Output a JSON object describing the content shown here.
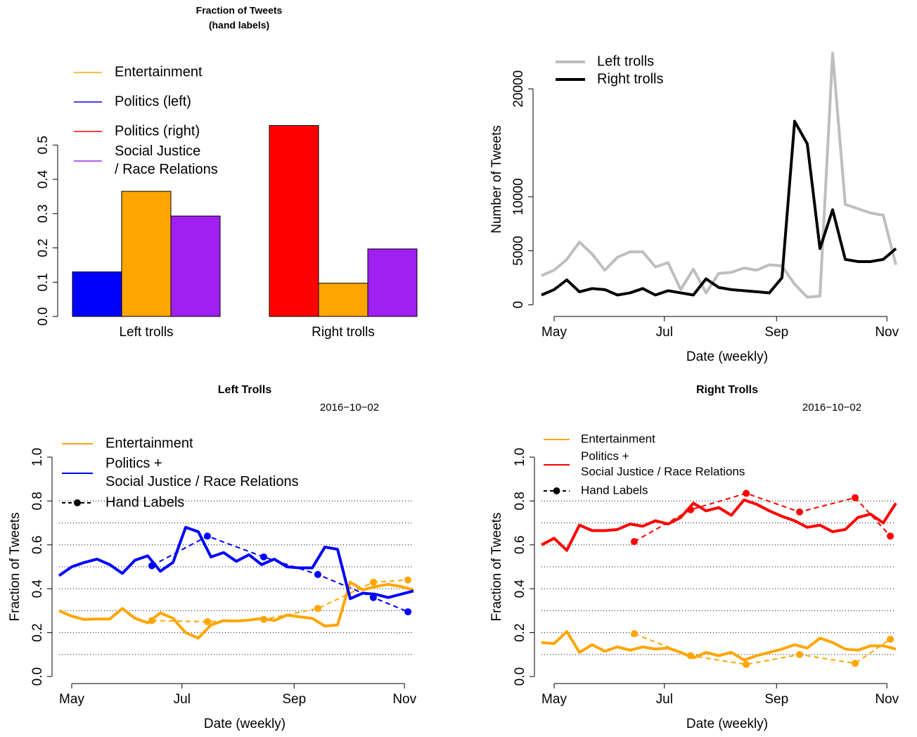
{
  "chart_data": [
    {
      "type": "bar",
      "title": "Fraction of Tweets\n(hand labels)",
      "legend": "topleft",
      "categories": [
        "Left trolls",
        "Right trolls"
      ],
      "series": [
        {
          "name": "Entertainment",
          "color": "#ffa500",
          "values": [
            0.365,
            0.097
          ]
        },
        {
          "name": "Politics (left)",
          "color": "#0000ff",
          "values": [
            0.13,
            null
          ]
        },
        {
          "name": "Politics (right)",
          "color": "#ff0000",
          "values": [
            null,
            0.557
          ]
        },
        {
          "name": "Social Justice\n/ Race Relations",
          "color": "#a020f0",
          "values": [
            0.293,
            0.197
          ]
        }
      ],
      "ylim": [
        0,
        0.56
      ],
      "yticks": [
        {
          "value": 0,
          "label": "0.0"
        },
        0.1,
        0.2,
        0.3,
        0.4,
        0.5
      ]
    },
    {
      "type": "line",
      "xlabel": "Date (weekly)",
      "ylabel": "Number of Tweets",
      "legend": "topleft",
      "x": [
        0,
        1,
        2,
        3,
        4,
        5,
        6,
        7,
        8,
        9,
        10,
        11,
        12,
        13,
        14,
        15,
        16,
        17,
        18,
        19,
        20,
        21,
        22,
        23,
        24,
        25,
        26,
        27,
        28
      ],
      "series": [
        {
          "name": "Left trolls",
          "color": "#bebebe",
          "values": [
            2700,
            3200,
            4200,
            5800,
            4700,
            3200,
            4400,
            4900,
            4900,
            3500,
            3900,
            1400,
            3300,
            1100,
            2900,
            3000,
            3400,
            3200,
            3700,
            3600,
            1900,
            700,
            800,
            23300,
            9300,
            8900,
            8500,
            8300,
            3700
          ]
        },
        {
          "name": "Right trolls",
          "color": "#000000",
          "values": [
            900,
            1400,
            2300,
            1200,
            1500,
            1400,
            900,
            1100,
            1500,
            900,
            1300,
            1100,
            900,
            2400,
            1600,
            1400,
            1300,
            1200,
            1100,
            2500,
            17000,
            14900,
            5200,
            8800,
            4200,
            4000,
            4000,
            4200,
            5200
          ]
        }
      ],
      "xlim": [
        0,
        28
      ],
      "xticks": [
        {
          "value": 1,
          "label": "May"
        },
        {
          "value": 9.71,
          "label": "Jul"
        },
        {
          "value": 18.57,
          "label": "Sep"
        },
        {
          "value": 27.29,
          "label": "Nov"
        }
      ],
      "ylim": [
        -500,
        24000
      ],
      "yticks": [
        0,
        5000,
        10000,
        20000
      ]
    },
    {
      "type": "line",
      "title": "Left Trolls",
      "subtitle": "2016−10−02",
      "xlabel": "Date (weekly)",
      "ylabel": "Fraction of Tweets",
      "legend": "topleft",
      "x": [
        0,
        1,
        2,
        3,
        4,
        5,
        6,
        7,
        8,
        9,
        10,
        11,
        12,
        13,
        14,
        15,
        16,
        17,
        18,
        19,
        20,
        21,
        22,
        23,
        24,
        25,
        26,
        27,
        28
      ],
      "series": [
        {
          "name": "Entertainment",
          "color": "#ffa500",
          "values": [
            0.3,
            0.275,
            0.26,
            0.262,
            0.262,
            0.31,
            0.265,
            0.245,
            0.29,
            0.265,
            0.2,
            0.175,
            0.235,
            0.255,
            0.253,
            0.257,
            0.265,
            0.255,
            0.28,
            0.272,
            0.265,
            0.23,
            0.235,
            0.43,
            0.395,
            0.41,
            0.42,
            0.41,
            0.395
          ]
        },
        {
          "name": "Politics +\nSocial Justice / Race Relations",
          "color": "#0000ff",
          "values": [
            0.46,
            0.5,
            0.52,
            0.535,
            0.51,
            0.47,
            0.53,
            0.55,
            0.48,
            0.52,
            0.68,
            0.66,
            0.545,
            0.565,
            0.525,
            0.555,
            0.51,
            0.535,
            0.5,
            0.495,
            0.495,
            0.59,
            0.58,
            0.355,
            0.38,
            0.375,
            0.36,
            0.375,
            0.39
          ]
        }
      ],
      "hand_labels": {
        "name": "Hand Labels",
        "color": "#000000",
        "x": [
          7.33,
          11.72,
          16.17,
          20.44,
          24.83,
          27.56
        ],
        "series": [
          {
            "color": "#ffa500",
            "values": [
              0.255,
              0.25,
              0.26,
              0.31,
              0.43,
              0.44
            ]
          },
          {
            "color": "#0000ff",
            "values": [
              0.505,
              0.64,
              0.545,
              0.465,
              0.36,
              0.295
            ]
          }
        ]
      },
      "xlim": [
        0,
        28
      ],
      "xticks": [
        {
          "value": 1,
          "label": "May"
        },
        {
          "value": 9.71,
          "label": "Jul"
        },
        {
          "value": 18.57,
          "label": "Sep"
        },
        {
          "value": 27.29,
          "label": "Nov"
        }
      ],
      "ylim": [
        0,
        1
      ],
      "yticks": [
        {
          "value": 0,
          "label": "0.0"
        },
        0.2,
        0.4,
        0.6,
        0.8,
        {
          "value": 1,
          "label": "1.0"
        }
      ],
      "grid": [
        0.1,
        0.2,
        0.3,
        0.4,
        0.5,
        0.6,
        0.7,
        0.8
      ]
    },
    {
      "type": "line",
      "title": "Right Trolls",
      "subtitle": "2016−10−02",
      "xlabel": "Date (weekly)",
      "ylabel": "Fraction of Tweets",
      "legend": "topleft",
      "x": [
        0,
        1,
        2,
        3,
        4,
        5,
        6,
        7,
        8,
        9,
        10,
        11,
        12,
        13,
        14,
        15,
        16,
        17,
        18,
        19,
        20,
        21,
        22,
        23,
        24,
        25,
        26,
        27,
        28
      ],
      "series": [
        {
          "name": "Entertainment",
          "color": "#ffa500",
          "values": [
            0.155,
            0.15,
            0.205,
            0.11,
            0.145,
            0.115,
            0.135,
            0.12,
            0.135,
            0.125,
            0.13,
            0.11,
            0.085,
            0.11,
            0.095,
            0.11,
            0.075,
            0.095,
            0.11,
            0.125,
            0.145,
            0.13,
            0.175,
            0.155,
            0.125,
            0.12,
            0.14,
            0.14,
            0.125
          ]
        },
        {
          "name": "Politics +\nSocial Justice / Race Relations",
          "color": "#ff0000",
          "values": [
            0.6,
            0.63,
            0.575,
            0.69,
            0.665,
            0.665,
            0.67,
            0.695,
            0.685,
            0.71,
            0.695,
            0.725,
            0.79,
            0.755,
            0.77,
            0.735,
            0.805,
            0.785,
            0.755,
            0.73,
            0.71,
            0.68,
            0.69,
            0.66,
            0.67,
            0.725,
            0.74,
            0.7,
            0.79
          ]
        }
      ],
      "hand_labels": {
        "name": "Hand Labels",
        "color": "#000000",
        "x": [
          7.33,
          11.78,
          16.17,
          20.39,
          24.78,
          27.56
        ],
        "series": [
          {
            "color": "#ffa500",
            "values": [
              0.195,
              0.095,
              0.055,
              0.1,
              0.06,
              0.17
            ]
          },
          {
            "color": "#ff0000",
            "values": [
              0.615,
              0.76,
              0.835,
              0.75,
              0.815,
              0.64
            ]
          }
        ]
      },
      "xlim": [
        0,
        28
      ],
      "xticks": [
        {
          "value": 1,
          "label": "May"
        },
        {
          "value": 9.71,
          "label": "Jul"
        },
        {
          "value": 18.57,
          "label": "Sep"
        },
        {
          "value": 27.29,
          "label": "Nov"
        }
      ],
      "ylim": [
        0,
        1
      ],
      "yticks": [
        {
          "value": 0,
          "label": "0.0"
        },
        0.2,
        0.4,
        0.6,
        0.8,
        {
          "value": 1,
          "label": "1.0"
        }
      ],
      "grid": [
        0.1,
        0.2,
        0.3,
        0.4,
        0.5,
        0.6,
        0.7,
        0.8
      ]
    }
  ]
}
